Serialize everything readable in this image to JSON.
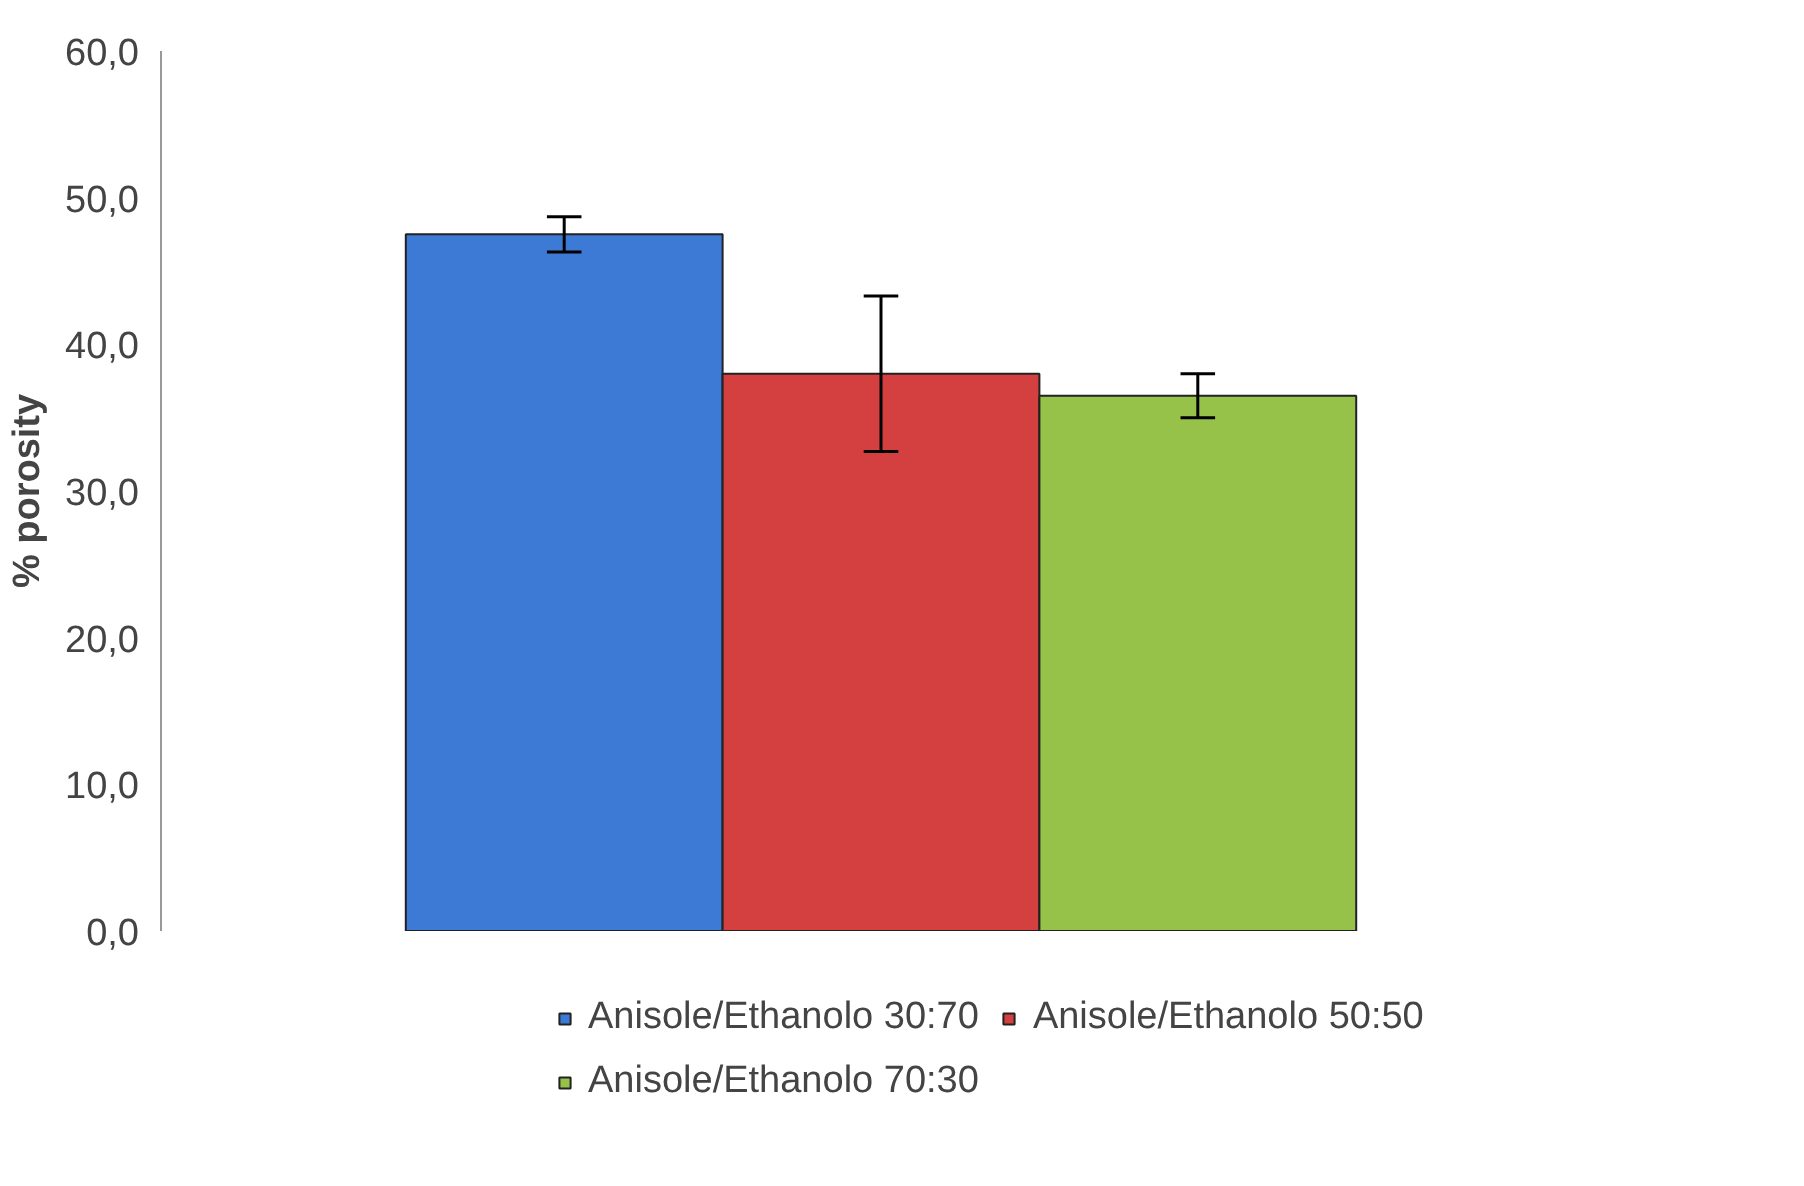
{
  "chart_data": {
    "type": "bar",
    "ylabel": "% porosity",
    "categories": [
      null
    ],
    "series": [
      {
        "name": "Anisole/Ethanolo 30:70",
        "color": "#3d7ad6",
        "values": [
          47.5
        ],
        "errors": [
          1.2
        ]
      },
      {
        "name": "Anisole/Ethanolo 50:50",
        "color": "#d44040",
        "values": [
          38.0
        ],
        "errors": [
          5.3
        ]
      },
      {
        "name": "Anisole/Ethanolo 70:30",
        "color": "#96c249",
        "values": [
          36.5
        ],
        "errors": [
          1.5
        ]
      }
    ],
    "ylim": [
      0,
      60
    ],
    "yticks": [
      {
        "value": 0,
        "label": "0,0"
      },
      {
        "value": 10,
        "label": "10,0"
      },
      {
        "value": 20,
        "label": "20,0"
      },
      {
        "value": 30,
        "label": "30,0"
      },
      {
        "value": 40,
        "label": "40,0"
      },
      {
        "value": 50,
        "label": "50,0"
      },
      {
        "value": 60,
        "label": "60,0"
      }
    ],
    "grid": false,
    "legend": "bottom"
  }
}
